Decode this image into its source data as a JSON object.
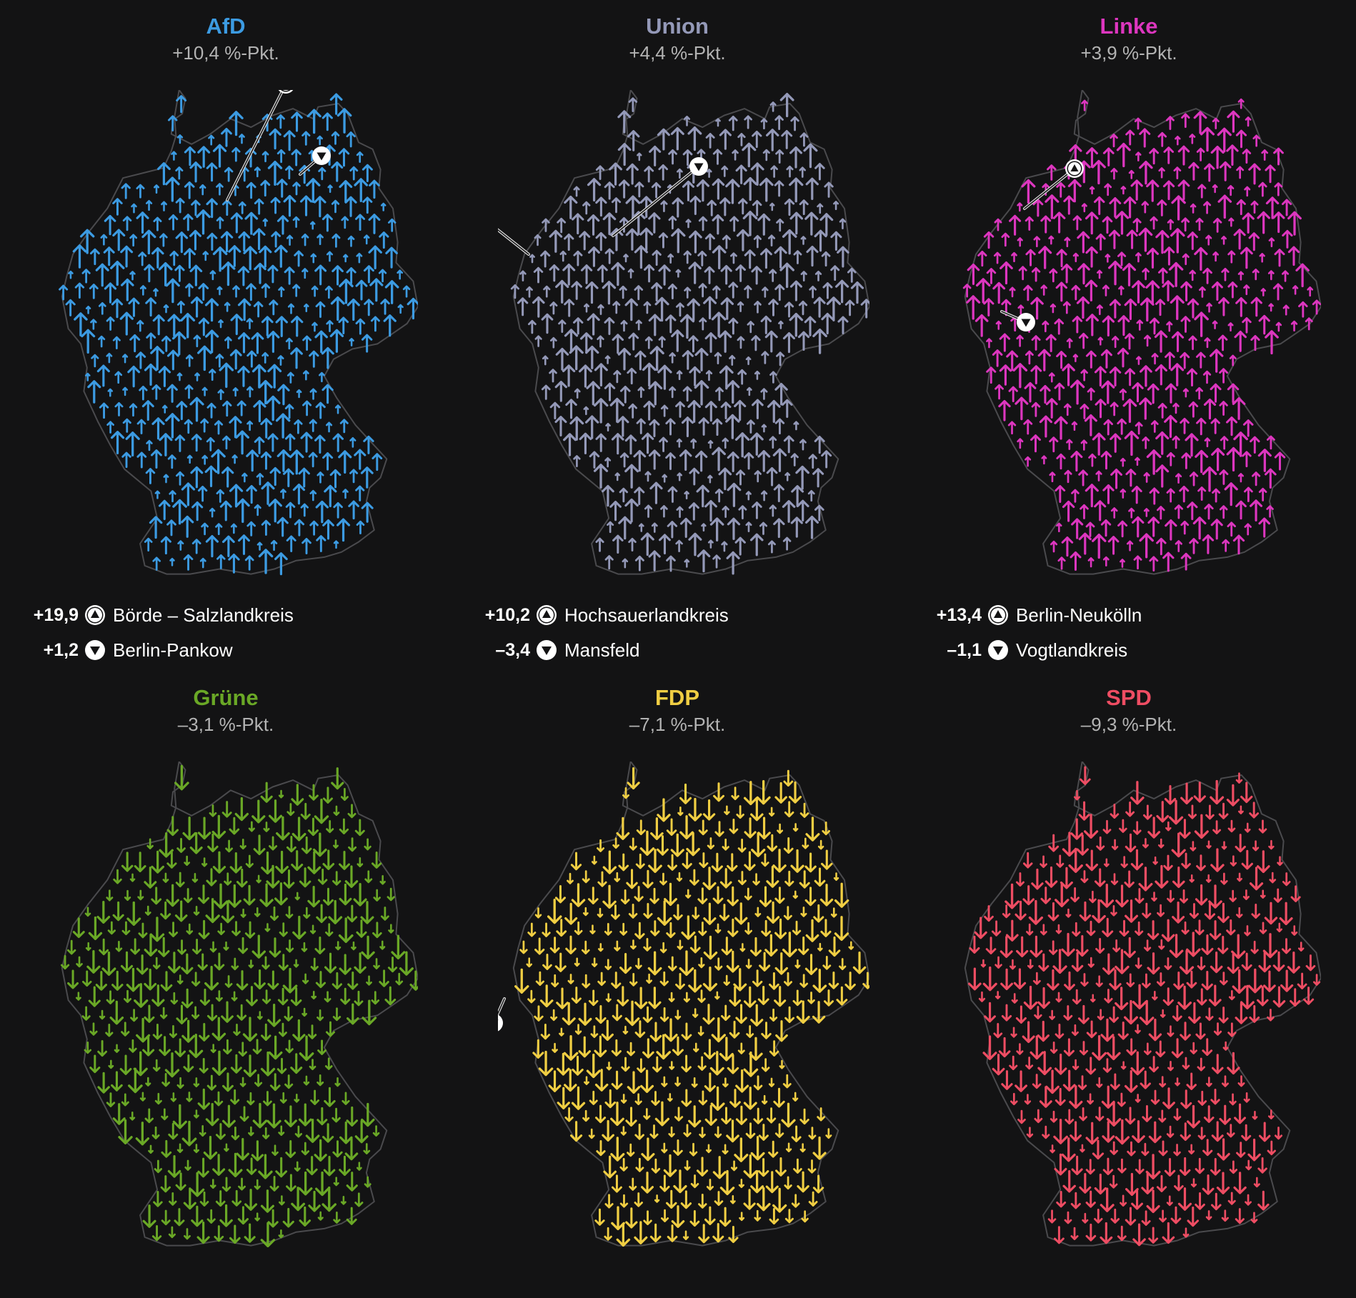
{
  "panels": [
    {
      "party": "AfD",
      "change": "+10,4 %-Pkt.",
      "color": "#3c9be2",
      "direction": "up",
      "extremes": [
        {
          "value": "+19,9",
          "kind": "up",
          "name": "Börde – Salzlandkreis"
        },
        {
          "value": "+1,2",
          "kind": "down",
          "name": "Berlin-Pankow"
        }
      ]
    },
    {
      "party": "Union",
      "change": "+4,4 %-Pkt.",
      "color": "#9499b8",
      "direction": "up",
      "extremes": [
        {
          "value": "+10,2",
          "kind": "up",
          "name": "Hochsauerlandkreis"
        },
        {
          "value": "–3,4",
          "kind": "down",
          "name": "Mansfeld"
        }
      ]
    },
    {
      "party": "Linke",
      "change": "+3,9 %-Pkt.",
      "color": "#dd36bf",
      "direction": "up",
      "extremes": [
        {
          "value": "+13,4",
          "kind": "up",
          "name": "Berlin-Neukölln"
        },
        {
          "value": "–1,1",
          "kind": "down",
          "name": "Vogtlandkreis"
        }
      ]
    },
    {
      "party": "Grüne",
      "change": "–3,1 %-Pkt.",
      "color": "#6aa826",
      "direction": "down",
      "extremes": []
    },
    {
      "party": "FDP",
      "change": "–7,1 %-Pkt.",
      "color": "#f0ce43",
      "direction": "down",
      "extremes": []
    },
    {
      "party": "SPD",
      "change": "–9,3 %-Pkt.",
      "color": "#ee4d63",
      "direction": "down",
      "extremes": []
    }
  ]
}
